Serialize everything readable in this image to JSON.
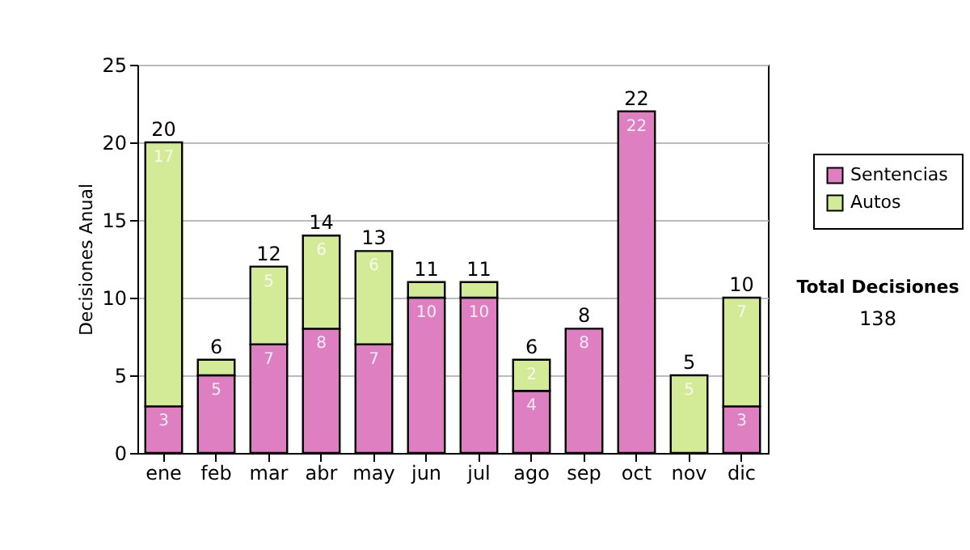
{
  "chart_data": {
    "type": "bar",
    "stacked": true,
    "ylabel": "Decisiones Anual",
    "categories": [
      "ene",
      "feb",
      "mar",
      "abr",
      "may",
      "jun",
      "jul",
      "ago",
      "sep",
      "oct",
      "nov",
      "dic"
    ],
    "series": [
      {
        "name": "Sentencias",
        "color": "#dd7fc0",
        "values": [
          3,
          5,
          7,
          8,
          7,
          10,
          10,
          4,
          8,
          22,
          0,
          3
        ],
        "value_labels": [
          "3",
          "5",
          "7",
          "8",
          "7",
          "10",
          "10",
          "4",
          "8",
          "22",
          null,
          "3"
        ]
      },
      {
        "name": "Autos",
        "color": "#d3ea96",
        "values": [
          17,
          1,
          5,
          6,
          6,
          1,
          1,
          2,
          0,
          0,
          5,
          7
        ],
        "value_labels": [
          "17",
          null,
          "5",
          "6",
          "6",
          null,
          null,
          "2",
          null,
          null,
          "5",
          "7"
        ]
      }
    ],
    "totals": [
      "20",
      "6",
      "12",
      "14",
      "13",
      "11",
      "11",
      "6",
      "8",
      "22",
      "5",
      "10"
    ],
    "ylim": [
      0,
      25
    ],
    "yticks": [
      0,
      5,
      10,
      15,
      20,
      25
    ],
    "grid": "y",
    "legend": "right",
    "annotations": [
      "Total Decisiones",
      "138"
    ]
  }
}
